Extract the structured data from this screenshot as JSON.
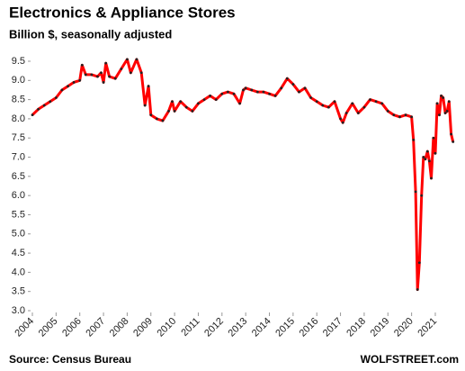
{
  "chart_data": {
    "type": "line",
    "title": "Electronics & Appliance Stores",
    "subtitle": "Billion $, seasonally adjusted",
    "source": "Source: Census Bureau",
    "credit": "WOLFSTREET.com",
    "color": "#ff0000",
    "marker_color": "#222222",
    "x": [
      2004.0,
      2004.25,
      2004.5,
      2004.75,
      2005.0,
      2005.25,
      2005.5,
      2005.75,
      2006.0,
      2006.1,
      2006.25,
      2006.5,
      2006.75,
      2006.9,
      2007.0,
      2007.1,
      2007.25,
      2007.5,
      2007.75,
      2008.0,
      2008.15,
      2008.4,
      2008.6,
      2008.75,
      2008.9,
      2009.0,
      2009.25,
      2009.5,
      2009.75,
      2009.9,
      2010.0,
      2010.25,
      2010.5,
      2010.75,
      2011.0,
      2011.25,
      2011.5,
      2011.75,
      2012.0,
      2012.25,
      2012.5,
      2012.75,
      2012.9,
      2013.0,
      2013.25,
      2013.5,
      2013.75,
      2014.0,
      2014.25,
      2014.5,
      2014.75,
      2015.0,
      2015.25,
      2015.5,
      2015.75,
      2016.0,
      2016.25,
      2016.5,
      2016.75,
      2017.0,
      2017.1,
      2017.25,
      2017.5,
      2017.75,
      2018.0,
      2018.25,
      2018.5,
      2018.75,
      2019.0,
      2019.25,
      2019.5,
      2019.75,
      2020.0,
      2020.08,
      2020.17,
      2020.25,
      2020.33,
      2020.42,
      2020.5,
      2020.58,
      2020.67,
      2020.75,
      2020.83,
      2020.92,
      2021.0,
      2021.08,
      2021.17,
      2021.25,
      2021.33,
      2021.42,
      2021.5,
      2021.58,
      2021.67,
      2021.75
    ],
    "values": [
      8.1,
      8.25,
      8.35,
      8.45,
      8.55,
      8.75,
      8.85,
      8.95,
      9.0,
      9.4,
      9.15,
      9.15,
      9.1,
      9.2,
      8.95,
      9.45,
      9.1,
      9.05,
      9.3,
      9.55,
      9.2,
      9.55,
      9.2,
      8.35,
      8.85,
      8.1,
      8.0,
      7.95,
      8.2,
      8.45,
      8.2,
      8.45,
      8.3,
      8.2,
      8.4,
      8.5,
      8.6,
      8.5,
      8.65,
      8.7,
      8.65,
      8.4,
      8.75,
      8.8,
      8.75,
      8.7,
      8.7,
      8.65,
      8.6,
      8.8,
      9.05,
      8.9,
      8.7,
      8.8,
      8.55,
      8.45,
      8.35,
      8.3,
      8.45,
      8.0,
      7.9,
      8.15,
      8.4,
      8.15,
      8.3,
      8.5,
      8.45,
      8.4,
      8.2,
      8.1,
      8.05,
      8.1,
      8.05,
      7.45,
      6.1,
      3.55,
      4.25,
      6.0,
      7.0,
      6.95,
      7.15,
      6.9,
      6.45,
      7.5,
      7.1,
      8.4,
      8.1,
      8.6,
      8.55,
      8.15,
      8.2,
      8.45,
      7.6,
      7.4
    ],
    "xlim": [
      2004,
      2021.9
    ],
    "xticks": [
      2004,
      2005,
      2006,
      2007,
      2008,
      2009,
      2010,
      2011,
      2012,
      2013,
      2014,
      2015,
      2016,
      2017,
      2018,
      2019,
      2020,
      2021
    ],
    "ylim": [
      3.0,
      9.5
    ],
    "yticks": [
      {
        "value": 3,
        "label": "3.0"
      },
      3.5,
      {
        "value": 4,
        "label": "4.0"
      },
      4.5,
      {
        "value": 5,
        "label": "5.0"
      },
      5.5,
      {
        "value": 6,
        "label": "6.0"
      },
      6.5,
      {
        "value": 7,
        "label": "7.0"
      },
      7.5,
      {
        "value": 8,
        "label": "8.0"
      },
      8.5,
      {
        "value": 9,
        "label": "9.0"
      },
      9.5
    ],
    "grid": false
  }
}
